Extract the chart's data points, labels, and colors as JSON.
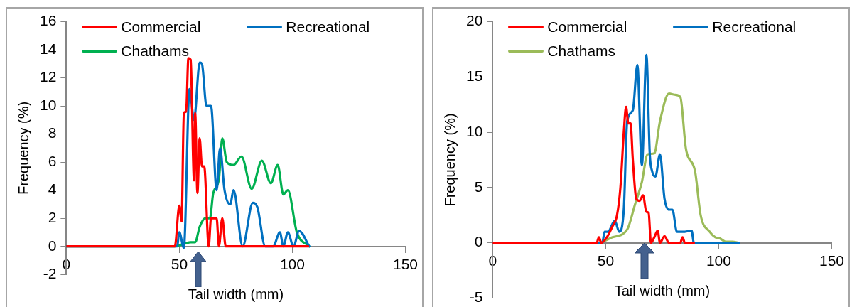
{
  "chart_data": [
    {
      "type": "line",
      "xlabel": "Tail width (mm)",
      "ylabel": "Frequency (%)",
      "xlim": [
        0,
        150
      ],
      "xticks": [
        0,
        50,
        100,
        150
      ],
      "ylim": [
        -2,
        16
      ],
      "yticks": [
        -2,
        0,
        2,
        4,
        6,
        8,
        10,
        12,
        14,
        16
      ],
      "grid": false,
      "legend": "top",
      "marker": "none",
      "line_style": "solid",
      "series": [
        {
          "name": "Commercial",
          "color": "#ff0000",
          "x": [
            0,
            48,
            50,
            51,
            52,
            53,
            54,
            55,
            56.5,
            57,
            58,
            59,
            60,
            61,
            63,
            64,
            66.5,
            67.5,
            69,
            70.5,
            107
          ],
          "values": [
            0,
            0,
            2.9,
            1.8,
            9.5,
            9.6,
            13.4,
            13.3,
            4.7,
            9.5,
            3.8,
            7.7,
            5.7,
            5.7,
            0,
            2,
            2,
            0,
            2,
            0,
            0
          ]
        },
        {
          "name": "Recreational",
          "color": "#0070c0",
          "x": [
            0,
            49,
            50,
            52,
            54.5,
            56.5,
            59,
            60,
            62,
            64,
            66.5,
            68,
            70,
            72.5,
            74,
            78,
            82.5,
            84.5,
            88,
            91.5,
            94.5,
            96,
            98,
            100.5,
            103,
            107.5
          ],
          "values": [
            0,
            0,
            1,
            -0.1,
            11.2,
            9,
            13.1,
            13,
            10,
            10,
            4,
            7,
            4,
            3,
            4,
            0,
            3.1,
            2.8,
            0,
            0,
            1,
            0,
            1,
            0,
            1.1,
            0
          ]
        },
        {
          "name": "Chathams",
          "color": "#00b050",
          "x": [
            0,
            47.5,
            52.5,
            55,
            57,
            59,
            61.5,
            63.5,
            65,
            67.5,
            69,
            71,
            74,
            77.5,
            82,
            86.5,
            90.5,
            93.5,
            96,
            98,
            102,
            107.5
          ],
          "values": [
            0,
            0,
            0.2,
            0.3,
            0.3,
            1.4,
            2,
            2,
            3.8,
            4.8,
            7.7,
            6,
            5.8,
            6.4,
            4.1,
            6.1,
            4.5,
            5.8,
            3.7,
            4,
            1,
            0
          ]
        }
      ]
    },
    {
      "type": "line",
      "xlabel": "Tail width (mm)",
      "ylabel": "Frequency (%)",
      "xlim": [
        0,
        150
      ],
      "xticks": [
        0,
        50,
        100,
        150
      ],
      "ylim": [
        -5,
        20
      ],
      "yticks": [
        -5,
        0,
        5,
        10,
        15,
        20
      ],
      "grid": false,
      "legend": "top",
      "marker": "none",
      "line_style": "solid",
      "series": [
        {
          "name": "Commercial",
          "color": "#ff0000",
          "x": [
            0,
            46,
            47,
            48,
            50.5,
            53,
            55,
            56.5,
            58,
            59,
            60,
            61,
            62,
            63.5,
            65,
            66.5,
            68,
            69,
            70,
            71.5,
            73,
            74,
            76,
            78,
            83,
            84,
            85,
            89
          ],
          "values": [
            0,
            0,
            0.5,
            0,
            0.5,
            1.5,
            2.5,
            5,
            10,
            12.3,
            10.8,
            10.8,
            7.5,
            4,
            3.8,
            4.3,
            2.8,
            2.7,
            0,
            0.5,
            1.1,
            0,
            0.6,
            0,
            0,
            0.5,
            0,
            0
          ]
        },
        {
          "name": "Recreational",
          "color": "#0070c0",
          "x": [
            0,
            48.5,
            49.5,
            51,
            54,
            56,
            58,
            59.5,
            62,
            64,
            66,
            68,
            69.5,
            70.5,
            72,
            74,
            76,
            78,
            79.5,
            81.5,
            85,
            88,
            89,
            109
          ],
          "values": [
            0,
            0,
            1,
            1,
            2,
            1,
            3,
            11,
            12,
            16.1,
            7,
            17,
            8,
            6.5,
            6,
            8,
            4,
            3,
            3,
            1,
            1,
            1.1,
            0,
            0
          ]
        },
        {
          "name": "Chathams",
          "color": "#9bbb59",
          "x": [
            0,
            46.5,
            53,
            59.5,
            63,
            66,
            68.5,
            71.5,
            74,
            78,
            80.5,
            83,
            85.5,
            89.5,
            92,
            96,
            98.5,
            100.5,
            103,
            106,
            109
          ],
          "values": [
            0,
            0,
            0.5,
            1.2,
            3.5,
            5.5,
            8,
            8.1,
            11,
            13.5,
            13.4,
            13.2,
            8.5,
            6.5,
            2.5,
            1,
            0.5,
            0.4,
            0.1,
            0.1,
            0
          ]
        }
      ]
    }
  ]
}
